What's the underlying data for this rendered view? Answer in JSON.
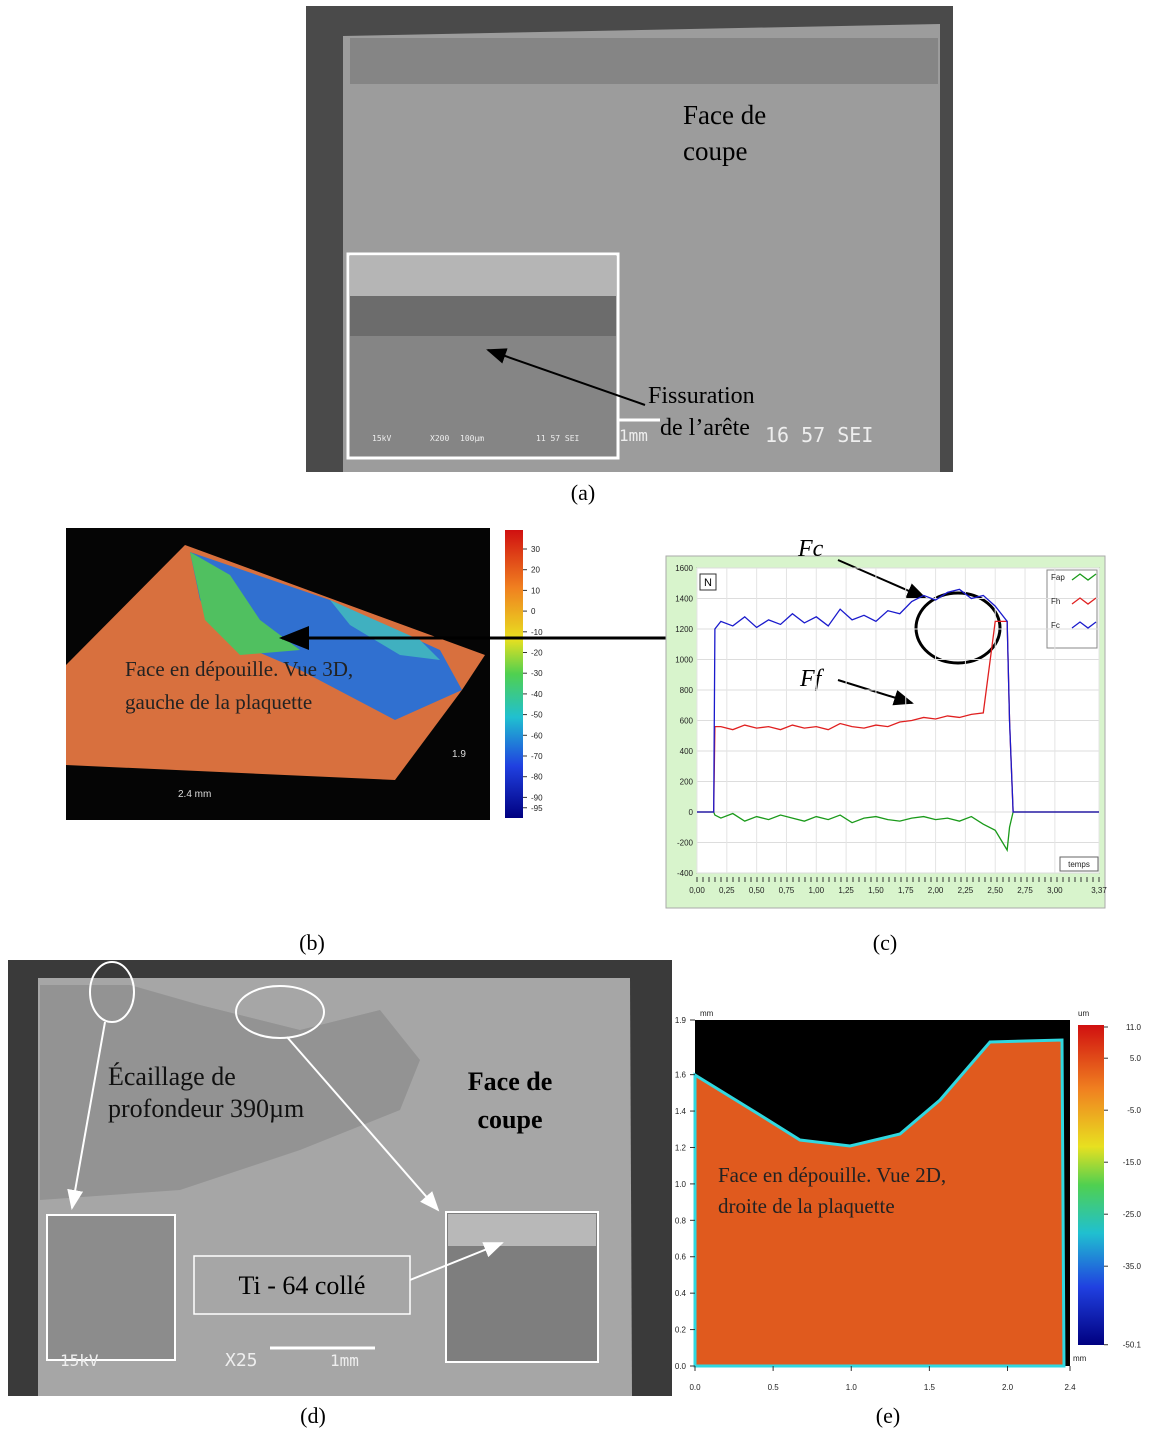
{
  "figure": {
    "a": {
      "caption": "(a)",
      "label": [
        "Face de",
        "coupe"
      ],
      "crack": [
        "Fissuration",
        "de l’arête"
      ],
      "inset_sem": [
        "15kV",
        "X200",
        "100µm",
        "11 57 SEI"
      ],
      "scale": "1mm",
      "sem": "16 57 SEI"
    },
    "b": {
      "caption": "(b)",
      "label": [
        "Face en dépouille. Vue 3D,",
        "gauche de la plaquette"
      ],
      "dim_x": "2.4 mm",
      "dim_y": "1.9",
      "colorbar_ticks": [
        30,
        20,
        10,
        0,
        -10,
        -20,
        -30,
        -40,
        -50,
        -60,
        -70,
        -80,
        -90,
        -95
      ]
    },
    "d": {
      "caption": "(d)",
      "label": [
        "Écaillage de",
        "profondeur 390µm"
      ],
      "face": [
        "Face de",
        "coupe"
      ],
      "adhered": "Ti - 64 collé",
      "sem": [
        "15kV",
        "X25",
        "1mm"
      ]
    },
    "e": {
      "caption": "(e)",
      "label": [
        "Face en dépouille. Vue 2D,",
        "droite de la plaquette"
      ],
      "x_unit": "mm",
      "y_unit": "mm",
      "c_unit": "um",
      "xticks": [
        {
          "value": 0,
          "label": "0.0"
        },
        0.5,
        {
          "value": 1,
          "label": "1.0"
        },
        1.5,
        {
          "value": 2,
          "label": "2.0"
        },
        2.4
      ],
      "yticks": [
        {
          "value": 0,
          "label": "0.0"
        },
        0.2,
        0.4,
        0.6,
        0.8,
        {
          "value": 1,
          "label": "1.0"
        },
        1.2,
        1.4,
        1.6,
        1.9
      ],
      "colorbar_ticks": [
        {
          "value": 11,
          "label": "11.0"
        },
        {
          "value": 5,
          "label": "5.0"
        },
        {
          "value": -5,
          "label": "-5.0"
        },
        {
          "value": -15,
          "label": "-15.0"
        },
        {
          "value": -25,
          "label": "-25.0"
        },
        {
          "value": -35,
          "label": "-35.0"
        },
        -50.1
      ]
    }
  },
  "chart_data": {
    "type": "line",
    "caption": "(c)",
    "y_unit": "N",
    "x_label": "temps",
    "annotations": [
      "Fc",
      "Ff"
    ],
    "x": [
      0,
      0.14,
      0.15,
      0.2,
      0.3,
      0.4,
      0.5,
      0.6,
      0.7,
      0.8,
      0.9,
      1.0,
      1.1,
      1.2,
      1.3,
      1.4,
      1.5,
      1.6,
      1.7,
      1.8,
      1.9,
      2.0,
      2.1,
      2.2,
      2.3,
      2.4,
      2.5,
      2.6,
      2.62,
      2.65,
      3.0,
      3.37
    ],
    "series": [
      {
        "name": "Fap",
        "color": "#1a9a1a",
        "values": [
          0,
          0,
          -20,
          -40,
          -10,
          -60,
          -30,
          -50,
          -20,
          -40,
          -60,
          -30,
          -50,
          -20,
          -70,
          -40,
          -30,
          -50,
          -60,
          -40,
          -30,
          -50,
          -40,
          -60,
          -30,
          -80,
          -120,
          -250,
          -100,
          0,
          0,
          0
        ]
      },
      {
        "name": "Fh",
        "color": "#e02020",
        "values": [
          0,
          0,
          560,
          560,
          540,
          570,
          550,
          560,
          540,
          570,
          550,
          560,
          540,
          580,
          560,
          550,
          570,
          560,
          590,
          600,
          620,
          610,
          630,
          620,
          640,
          650,
          1250,
          1250,
          600,
          0,
          0,
          0
        ]
      },
      {
        "name": "Fc",
        "color": "#1a1acc",
        "values": [
          0,
          0,
          1200,
          1250,
          1220,
          1280,
          1210,
          1260,
          1230,
          1300,
          1240,
          1280,
          1220,
          1330,
          1260,
          1290,
          1250,
          1320,
          1300,
          1380,
          1420,
          1390,
          1440,
          1460,
          1400,
          1420,
          1350,
          1250,
          600,
          0,
          0,
          0
        ]
      }
    ],
    "xlim": [
      0,
      3.37
    ],
    "ylim": [
      -400,
      1600
    ],
    "xticks": [
      {
        "value": 0,
        "label": "0,00"
      },
      {
        "value": 0.25,
        "label": "0,25"
      },
      {
        "value": 0.5,
        "label": "0,50"
      },
      {
        "value": 0.75,
        "label": "0,75"
      },
      {
        "value": 1,
        "label": "1,00"
      },
      {
        "value": 1.25,
        "label": "1,25"
      },
      {
        "value": 1.5,
        "label": "1,50"
      },
      {
        "value": 1.75,
        "label": "1,75"
      },
      {
        "value": 2,
        "label": "2,00"
      },
      {
        "value": 2.25,
        "label": "2,25"
      },
      {
        "value": 2.5,
        "label": "2,50"
      },
      {
        "value": 2.75,
        "label": "2,75"
      },
      {
        "value": 3,
        "label": "3,00"
      },
      {
        "value": 3.37,
        "label": "3,37"
      }
    ],
    "yticks": [
      1600,
      1400,
      1200,
      1000,
      800,
      600,
      400,
      200,
      0,
      -200,
      -400
    ],
    "grid": true
  }
}
